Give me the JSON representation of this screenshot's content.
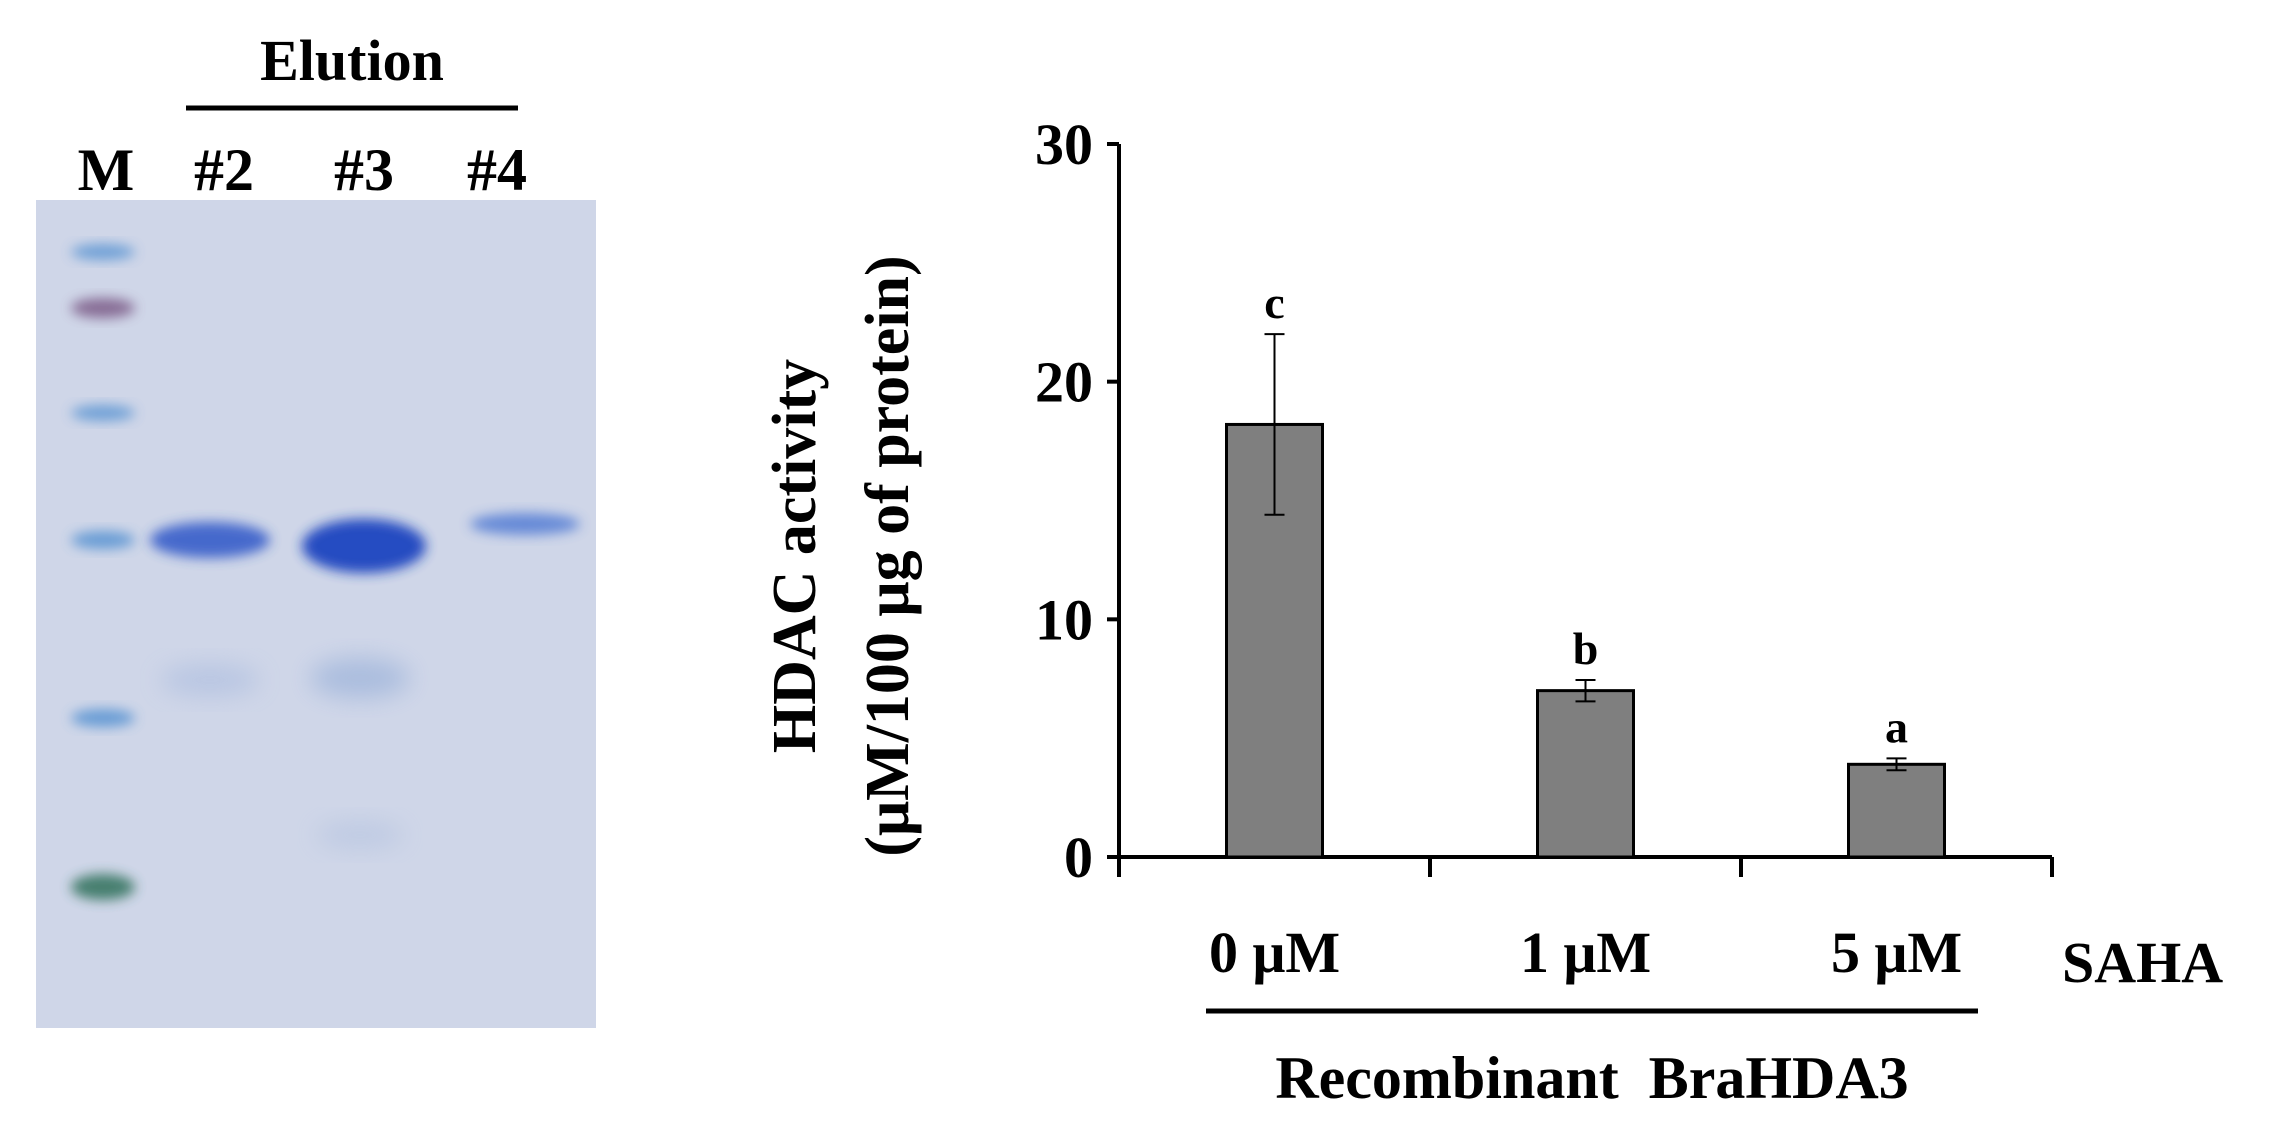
{
  "gel_panel": {
    "group_label": "Elution",
    "lane_labels": [
      "M",
      "#2",
      "#3",
      "#4"
    ],
    "colors": {
      "gel_background": "#cfd6e8",
      "marker_band": "#4f8ed0",
      "marker_band_purple": "#7a5a86",
      "marker_band_green": "#2f6f5a",
      "protein_band": "#2d57c8"
    }
  },
  "chart_data": {
    "type": "bar",
    "categories": [
      "0 μM",
      "1 μM",
      "5 μM"
    ],
    "series": [
      {
        "values": [
          18.2,
          7.0,
          3.9
        ],
        "error": [
          3.8,
          0.45,
          0.25
        ],
        "significance_letters": [
          "c",
          "b",
          "a"
        ]
      }
    ],
    "ylabel_line1": "HDAC activity",
    "ylabel_line2": "(μM/100 μg of protein)",
    "xlabel_treatment": "SAHA",
    "xlabel_group": "Recombinant  BraHDA3",
    "ylim": [
      0,
      30
    ],
    "yticks": [
      0,
      10,
      20,
      30
    ],
    "grid": false,
    "legend": "none",
    "colors": {
      "bar_fill": "#7f7f7f",
      "bar_stroke": "#000000",
      "axis": "#000000"
    }
  }
}
